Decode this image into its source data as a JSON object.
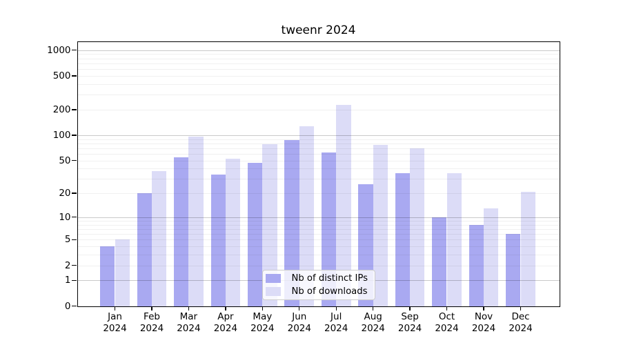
{
  "chart_data": {
    "type": "bar",
    "title": "tweenr 2024",
    "year": "2024",
    "categories": [
      "Jan",
      "Feb",
      "Mar",
      "Apr",
      "May",
      "Jun",
      "Jul",
      "Aug",
      "Sep",
      "Oct",
      "Nov",
      "Dec"
    ],
    "series": [
      {
        "name": "Nb of distinct IPs",
        "color": "#a9a9f1",
        "values": [
          4,
          20,
          55,
          34,
          47,
          88,
          62,
          26,
          35,
          10,
          8,
          6
        ]
      },
      {
        "name": "Nb of downloads",
        "color": "#dcdcf7",
        "values": [
          5,
          37,
          97,
          53,
          78,
          128,
          228,
          76,
          70,
          35,
          13,
          21
        ]
      }
    ],
    "yscale": "log1p",
    "yticks": [
      0,
      1,
      2,
      5,
      10,
      20,
      50,
      100,
      200,
      500,
      1000
    ],
    "ylim": [
      0,
      1258
    ],
    "grid": "on",
    "legend_position": "lower center",
    "colors": {
      "grid_major": "#c9c9c9",
      "grid_minor": "#efefef",
      "axis": "#000000",
      "legend_border": "#cccccc",
      "legend_bg": "rgba(255,255,255,0.8)"
    }
  }
}
